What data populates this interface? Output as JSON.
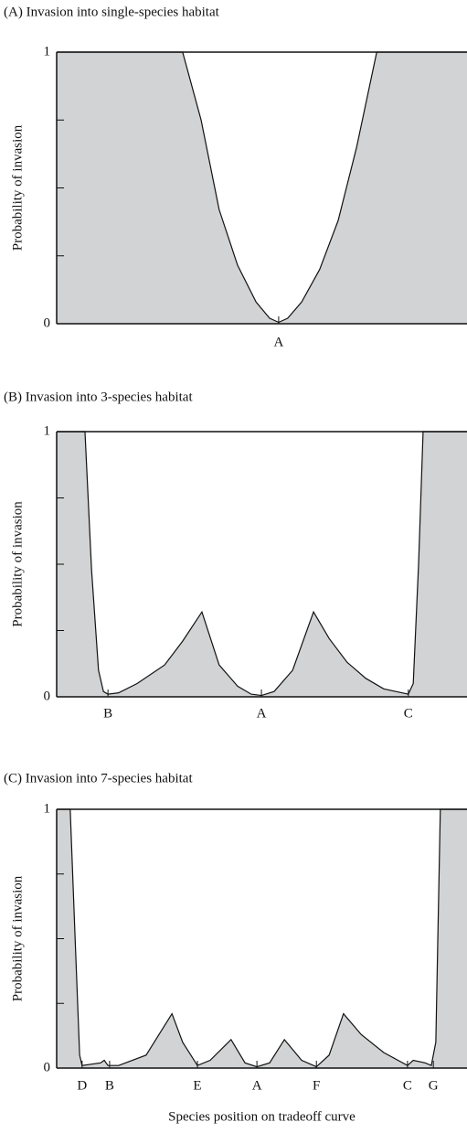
{
  "chart_data": [
    {
      "type": "area",
      "title": "(A) Invasion into single-species habitat",
      "ylabel": "Probability of invasion",
      "x": [
        0,
        30.7,
        35.2,
        39.6,
        44.1,
        48.6,
        51.9,
        54.1,
        56.3,
        59.7,
        64.1,
        68.6,
        73.1,
        78.0,
        100
      ],
      "values": [
        1,
        1,
        0.75,
        0.42,
        0.215,
        0.08,
        0.02,
        0.005,
        0.02,
        0.08,
        0.2,
        0.38,
        0.65,
        1,
        1
      ],
      "color": "#d1d3d4",
      "xlim": [
        0,
        100
      ],
      "ylim": [
        0,
        1
      ],
      "yticks": [
        0,
        1
      ],
      "yminorticks": [
        0.25,
        0.5,
        0.75
      ],
      "xticks": [
        {
          "value": 54.1,
          "label": "A"
        }
      ]
    },
    {
      "type": "area",
      "title": "(B) Invasion into 3-species habitat",
      "ylabel": "Probability of invasion",
      "x": [
        0,
        6.9,
        8.5,
        10.2,
        11.4,
        12.5,
        15.1,
        19.6,
        26.3,
        30.7,
        35.4,
        39.6,
        44.1,
        47.4,
        49.9,
        53.0,
        57.5,
        62.6,
        66.4,
        70.8,
        75.3,
        79.7,
        84.2,
        85.7,
        86.9,
        88.2,
        89.3,
        100
      ],
      "values": [
        1,
        1,
        0.48,
        0.1,
        0.02,
        0.01,
        0.015,
        0.05,
        0.12,
        0.21,
        0.32,
        0.12,
        0.04,
        0.01,
        0.005,
        0.02,
        0.1,
        0.32,
        0.22,
        0.13,
        0.07,
        0.03,
        0.015,
        0.01,
        0.05,
        0.5,
        1,
        1
      ],
      "color": "#d1d3d4",
      "xlim": [
        0,
        100
      ],
      "ylim": [
        0,
        1
      ],
      "yticks": [
        0,
        1
      ],
      "yminorticks": [
        0.25,
        0.5,
        0.75
      ],
      "xticks": [
        {
          "value": 12.5,
          "label": "B"
        },
        {
          "value": 49.9,
          "label": "A"
        },
        {
          "value": 85.7,
          "label": "C"
        }
      ]
    },
    {
      "type": "area",
      "title": "(C) Invasion into 7-species habitat",
      "ylabel": "Probability of invasion",
      "xlabel": "Species position on tradeoff curve",
      "x": [
        0,
        3.3,
        4.5,
        5.6,
        6.2,
        10.7,
        11.6,
        12.5,
        15.1,
        21.8,
        28.1,
        30.7,
        34.3,
        37.4,
        42.5,
        45.9,
        48.8,
        51.9,
        55.5,
        59.7,
        63.3,
        66.4,
        69.9,
        74.2,
        79.7,
        85.5,
        86.9,
        89.8,
        91.3,
        92.4,
        93.5,
        100
      ],
      "values": [
        1,
        1,
        0.5,
        0.05,
        0.01,
        0.02,
        0.03,
        0.01,
        0.01,
        0.05,
        0.21,
        0.1,
        0.01,
        0.03,
        0.11,
        0.02,
        0.005,
        0.02,
        0.11,
        0.03,
        0.005,
        0.05,
        0.21,
        0.13,
        0.06,
        0.01,
        0.03,
        0.02,
        0.01,
        0.1,
        1,
        1
      ],
      "color": "#d1d3d4",
      "xlim": [
        0,
        100
      ],
      "ylim": [
        0,
        1
      ],
      "yticks": [
        0,
        1
      ],
      "yminorticks": [
        0.25,
        0.5,
        0.75
      ],
      "xticks": [
        {
          "value": 6.2,
          "label": "D"
        },
        {
          "value": 12.9,
          "label": "B"
        },
        {
          "value": 34.3,
          "label": "E"
        },
        {
          "value": 48.8,
          "label": "A"
        },
        {
          "value": 63.3,
          "label": "F"
        },
        {
          "value": 85.5,
          "label": "C"
        },
        {
          "value": 91.8,
          "label": "G"
        }
      ]
    }
  ]
}
